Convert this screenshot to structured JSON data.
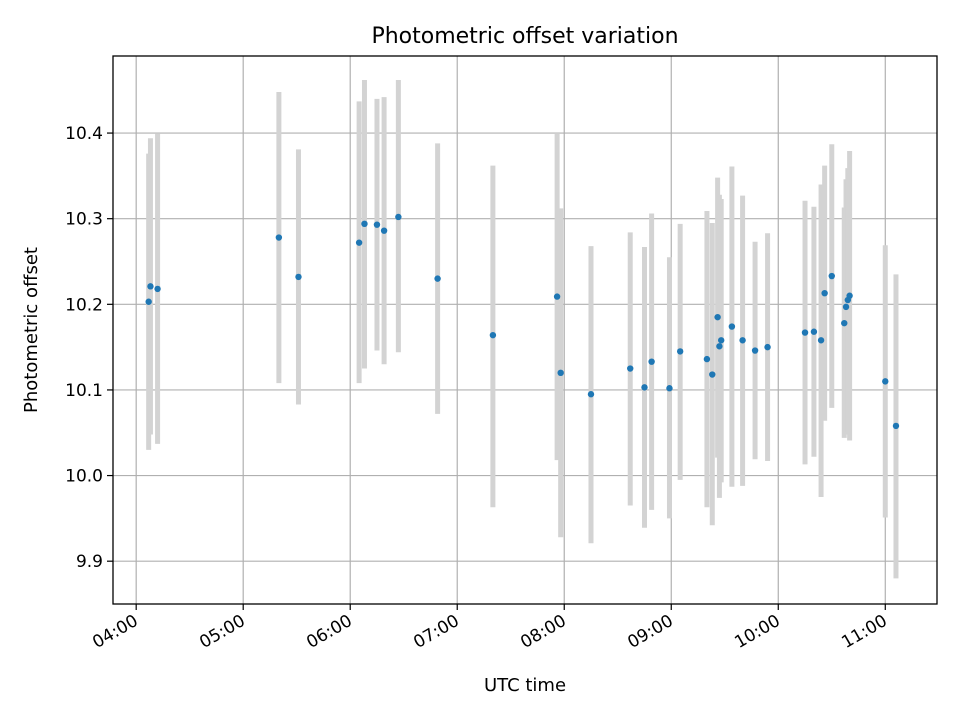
{
  "chart_data": {
    "type": "scatter",
    "title": "Photometric offset variation",
    "xlabel": "UTC time",
    "ylabel": "Photometric offset",
    "xlim": [
      "03:47",
      "11:29"
    ],
    "ylim": [
      9.85,
      10.49
    ],
    "grid": true,
    "x_ticks": [
      "04:00",
      "05:00",
      "06:00",
      "07:00",
      "08:00",
      "09:00",
      "10:00",
      "11:00"
    ],
    "y_ticks": [
      "9.9",
      "10.0",
      "10.1",
      "10.2",
      "10.3",
      "10.4"
    ],
    "colors": {
      "point": "#1f77b4",
      "errorbar": "#d3d3d3",
      "grid": "#b0b0b0"
    },
    "points": [
      {
        "x": "04:07",
        "y": 10.203,
        "ylo": 10.03,
        "yhi": 10.376
      },
      {
        "x": "04:08",
        "y": 10.221,
        "ylo": 10.048,
        "yhi": 10.394
      },
      {
        "x": "04:12",
        "y": 10.218,
        "ylo": 10.037,
        "yhi": 10.399
      },
      {
        "x": "05:20",
        "y": 10.278,
        "ylo": 10.108,
        "yhi": 10.448
      },
      {
        "x": "05:31",
        "y": 10.232,
        "ylo": 10.083,
        "yhi": 10.381
      },
      {
        "x": "06:05",
        "y": 10.272,
        "ylo": 10.108,
        "yhi": 10.437
      },
      {
        "x": "06:08",
        "y": 10.294,
        "ylo": 10.125,
        "yhi": 10.462
      },
      {
        "x": "06:15",
        "y": 10.293,
        "ylo": 10.146,
        "yhi": 10.44
      },
      {
        "x": "06:19",
        "y": 10.286,
        "ylo": 10.13,
        "yhi": 10.442
      },
      {
        "x": "06:27",
        "y": 10.302,
        "ylo": 10.144,
        "yhi": 10.462
      },
      {
        "x": "06:49",
        "y": 10.23,
        "ylo": 10.072,
        "yhi": 10.388
      },
      {
        "x": "07:20",
        "y": 10.164,
        "ylo": 9.963,
        "yhi": 10.362
      },
      {
        "x": "07:56",
        "y": 10.209,
        "ylo": 10.018,
        "yhi": 10.4
      },
      {
        "x": "07:58",
        "y": 10.12,
        "ylo": 9.928,
        "yhi": 10.312
      },
      {
        "x": "08:15",
        "y": 10.095,
        "ylo": 9.921,
        "yhi": 10.268
      },
      {
        "x": "08:37",
        "y": 10.125,
        "ylo": 9.965,
        "yhi": 10.284
      },
      {
        "x": "08:45",
        "y": 10.103,
        "ylo": 9.939,
        "yhi": 10.267
      },
      {
        "x": "08:49",
        "y": 10.133,
        "ylo": 9.96,
        "yhi": 10.306
      },
      {
        "x": "08:59",
        "y": 10.102,
        "ylo": 9.95,
        "yhi": 10.255
      },
      {
        "x": "09:05",
        "y": 10.145,
        "ylo": 9.995,
        "yhi": 10.294
      },
      {
        "x": "09:20",
        "y": 10.136,
        "ylo": 9.963,
        "yhi": 10.309
      },
      {
        "x": "09:23",
        "y": 10.118,
        "ylo": 9.942,
        "yhi": 10.295
      },
      {
        "x": "09:26",
        "y": 10.185,
        "ylo": 10.021,
        "yhi": 10.348
      },
      {
        "x": "09:27",
        "y": 10.151,
        "ylo": 9.974,
        "yhi": 10.328
      },
      {
        "x": "09:28",
        "y": 10.158,
        "ylo": 9.992,
        "yhi": 10.323
      },
      {
        "x": "09:34",
        "y": 10.174,
        "ylo": 9.987,
        "yhi": 10.361
      },
      {
        "x": "09:40",
        "y": 10.158,
        "ylo": 9.988,
        "yhi": 10.327
      },
      {
        "x": "09:47",
        "y": 10.146,
        "ylo": 10.019,
        "yhi": 10.273
      },
      {
        "x": "09:54",
        "y": 10.15,
        "ylo": 10.017,
        "yhi": 10.283
      },
      {
        "x": "10:15",
        "y": 10.167,
        "ylo": 10.013,
        "yhi": 10.321
      },
      {
        "x": "10:20",
        "y": 10.168,
        "ylo": 10.022,
        "yhi": 10.314
      },
      {
        "x": "10:24",
        "y": 10.158,
        "ylo": 9.975,
        "yhi": 10.34
      },
      {
        "x": "10:26",
        "y": 10.213,
        "ylo": 10.064,
        "yhi": 10.362
      },
      {
        "x": "10:30",
        "y": 10.233,
        "ylo": 10.079,
        "yhi": 10.387
      },
      {
        "x": "10:37",
        "y": 10.178,
        "ylo": 10.044,
        "yhi": 10.313
      },
      {
        "x": "10:38",
        "y": 10.197,
        "ylo": 10.048,
        "yhi": 10.346
      },
      {
        "x": "10:39",
        "y": 10.205,
        "ylo": 10.051,
        "yhi": 10.359
      },
      {
        "x": "10:40",
        "y": 10.21,
        "ylo": 10.041,
        "yhi": 10.379
      },
      {
        "x": "11:00",
        "y": 10.11,
        "ylo": 9.951,
        "yhi": 10.269
      },
      {
        "x": "11:06",
        "y": 10.058,
        "ylo": 9.88,
        "yhi": 10.235
      }
    ]
  }
}
